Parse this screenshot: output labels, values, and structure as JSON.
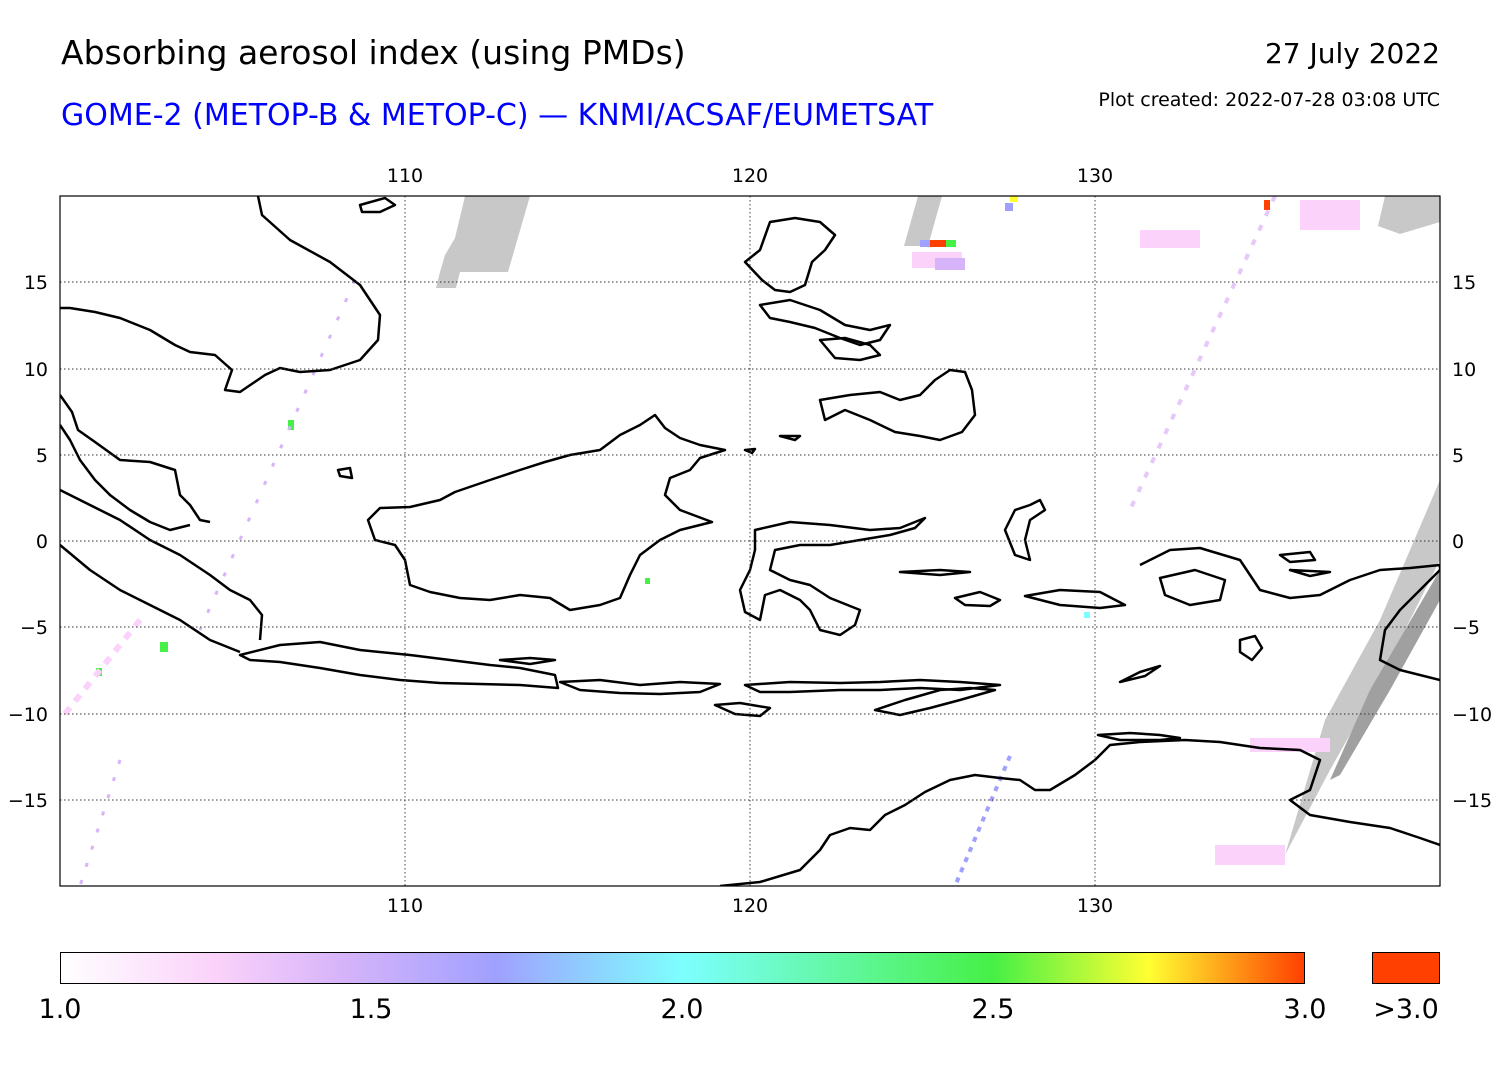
{
  "header": {
    "title": "Absorbing aerosol index (using PMDs)",
    "subtitle": "GOME-2 (METOP-B & METOP-C) — KNMI/ACSAF/EUMETSAT",
    "date": "27 July 2022",
    "created": "Plot created: 2022-07-28 03:08 UTC"
  },
  "map": {
    "lon_range": [
      100,
      140
    ],
    "lat_range": [
      -20,
      20
    ],
    "lon_ticks": [
      {
        "value": 110,
        "label": "110"
      },
      {
        "value": 120,
        "label": "120"
      },
      {
        "value": 130,
        "label": "130"
      }
    ],
    "lat_ticks": [
      {
        "value": 15,
        "label": "15"
      },
      {
        "value": 10,
        "label": "10"
      },
      {
        "value": 5,
        "label": "5"
      },
      {
        "value": 0,
        "label": "0"
      },
      {
        "value": -5,
        "label": "−5"
      },
      {
        "value": -10,
        "label": "−10"
      },
      {
        "value": -15,
        "label": "−15"
      }
    ],
    "gridlines": true,
    "no_data_color": "#c8c8c8",
    "coastline_color": "#000000"
  },
  "colorbar": {
    "min": 1.0,
    "max": 3.0,
    "labels": [
      "1.0",
      "1.5",
      "2.0",
      "2.5",
      "3.0"
    ],
    "overflow_label": ">3.0",
    "overflow_color": "#ff4000",
    "stops": [
      {
        "value": 1.0,
        "color": "#ffffff"
      },
      {
        "value": 1.25,
        "color": "#fad2fa"
      },
      {
        "value": 1.45,
        "color": "#d7b4fa"
      },
      {
        "value": 1.7,
        "color": "#a0a0ff"
      },
      {
        "value": 2.0,
        "color": "#7dffff"
      },
      {
        "value": 2.5,
        "color": "#46f046"
      },
      {
        "value": 2.75,
        "color": "#ffff32"
      },
      {
        "value": 3.0,
        "color": "#ff4000"
      }
    ]
  }
}
